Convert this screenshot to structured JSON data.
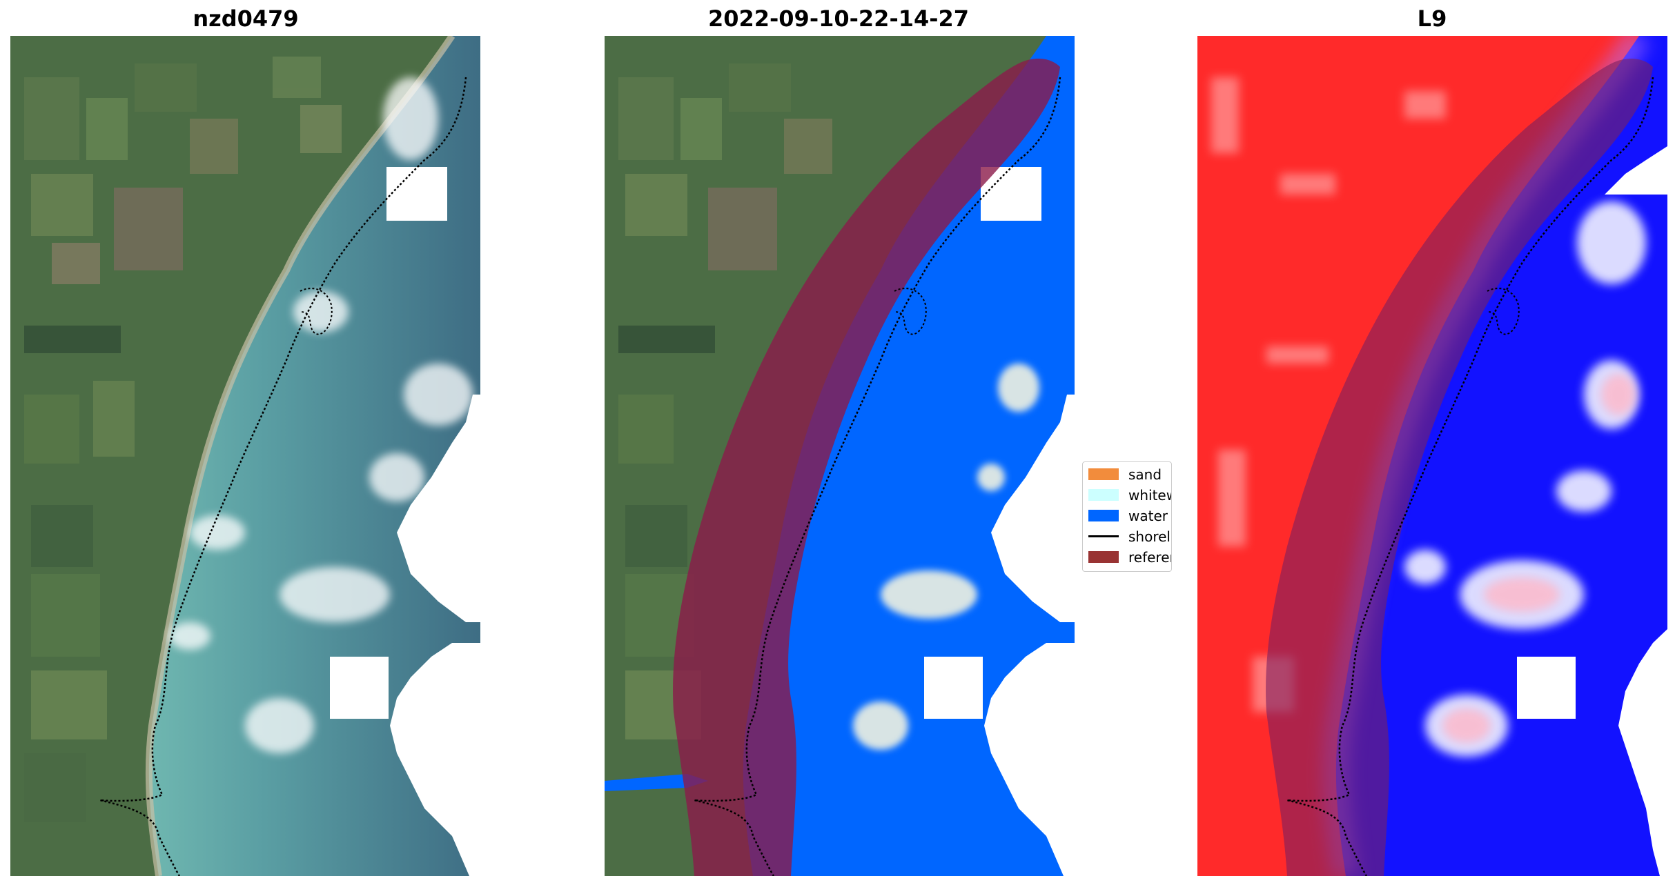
{
  "titles": {
    "panel1": "nzd0479",
    "panel2": "2022-09-10-22-14-27",
    "panel3": "L9"
  },
  "legend": {
    "items": [
      {
        "label": "sand",
        "color": "#f28c3c"
      },
      {
        "label": "whitewater",
        "color": "#ccffff"
      },
      {
        "label": "water",
        "color": "#0066ff"
      },
      {
        "label": "shoreline",
        "color": "#000000"
      },
      {
        "label": "reference",
        "color": "#993333"
      }
    ]
  },
  "colors": {
    "land_green": "#4d6e45",
    "water_teal": "#5f9da0",
    "water_deep": "#3d6b80",
    "classified_water": "#0066ff",
    "reference_band": "#8b1a4a",
    "index_red": "#ff2020",
    "index_blue": "#1010ff"
  }
}
